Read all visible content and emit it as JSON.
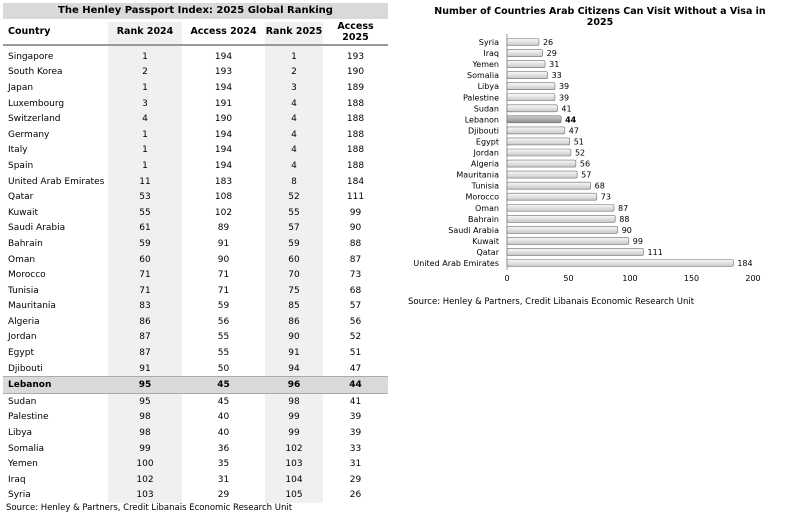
{
  "table": {
    "title": "The Henley Passport Index: 2025 Global Ranking",
    "headers": [
      "Country",
      "Rank 2024",
      "Access 2024",
      "Rank 2025",
      "Access 2025"
    ],
    "rows": [
      [
        "Singapore",
        "1",
        "194",
        "1",
        "193"
      ],
      [
        "South Korea",
        "2",
        "193",
        "2",
        "190"
      ],
      [
        "Japan",
        "1",
        "194",
        "3",
        "189"
      ],
      [
        "Luxembourg",
        "3",
        "191",
        "4",
        "188"
      ],
      [
        "Switzerland",
        "4",
        "190",
        "4",
        "188"
      ],
      [
        "Germany",
        "1",
        "194",
        "4",
        "188"
      ],
      [
        "Italy",
        "1",
        "194",
        "4",
        "188"
      ],
      [
        "Spain",
        "1",
        "194",
        "4",
        "188"
      ],
      [
        "United Arab Emirates",
        "11",
        "183",
        "8",
        "184"
      ],
      [
        "Qatar",
        "53",
        "108",
        "52",
        "111"
      ],
      [
        "Kuwait",
        "55",
        "102",
        "55",
        "99"
      ],
      [
        "Saudi Arabia",
        "61",
        "89",
        "57",
        "90"
      ],
      [
        "Bahrain",
        "59",
        "91",
        "59",
        "88"
      ],
      [
        "Oman",
        "60",
        "90",
        "60",
        "87"
      ],
      [
        "Morocco",
        "71",
        "71",
        "70",
        "73"
      ],
      [
        "Tunisia",
        "71",
        "71",
        "75",
        "68"
      ],
      [
        "Mauritania",
        "83",
        "59",
        "85",
        "57"
      ],
      [
        "Algeria",
        "86",
        "56",
        "86",
        "56"
      ],
      [
        "Jordan",
        "87",
        "55",
        "90",
        "52"
      ],
      [
        "Egypt",
        "87",
        "55",
        "91",
        "51"
      ],
      [
        "Djibouti",
        "91",
        "50",
        "94",
        "47"
      ],
      [
        "Lebanon",
        "95",
        "45",
        "96",
        "44"
      ],
      [
        "Sudan",
        "95",
        "45",
        "98",
        "41"
      ],
      [
        "Palestine",
        "98",
        "40",
        "99",
        "39"
      ],
      [
        "Libya",
        "98",
        "40",
        "99",
        "39"
      ],
      [
        "Somalia",
        "99",
        "36",
        "102",
        "33"
      ],
      [
        "Yemen",
        "100",
        "35",
        "103",
        "31"
      ],
      [
        "Iraq",
        "102",
        "31",
        "104",
        "29"
      ],
      [
        "Syria",
        "103",
        "29",
        "105",
        "26"
      ]
    ],
    "highlight_row": "Lebanon",
    "source": "Source: Henley & Partners, Credit Libanais Economic Research Unit"
  },
  "chart_data": {
    "type": "bar",
    "orientation": "horizontal",
    "title": "Number of Countries Arab Citizens Can Visit Without a Visa in 2025",
    "categories": [
      "Syria",
      "Iraq",
      "Yemen",
      "Somalia",
      "Libya",
      "Palestine",
      "Sudan",
      "Lebanon",
      "Djibouti",
      "Egypt",
      "Jordan",
      "Algeria",
      "Mauritania",
      "Tunisia",
      "Morocco",
      "Oman",
      "Bahrain",
      "Saudi Arabia",
      "Kuwait",
      "Qatar",
      "United Arab Emirates"
    ],
    "values": [
      26,
      29,
      31,
      33,
      39,
      39,
      41,
      44,
      47,
      51,
      52,
      56,
      57,
      68,
      73,
      87,
      88,
      90,
      99,
      111,
      184
    ],
    "highlight": "Lebanon",
    "xlim": [
      0,
      200
    ],
    "xticks": [
      "0",
      "50",
      "100",
      "150",
      "200"
    ],
    "grid": false,
    "colors": {
      "bar": "#e0e0e0",
      "highlight": "#a6a6a6",
      "edge": "#707070"
    },
    "source": "Source: Henley & Partners, Credit Libanais Economic Research Unit"
  }
}
